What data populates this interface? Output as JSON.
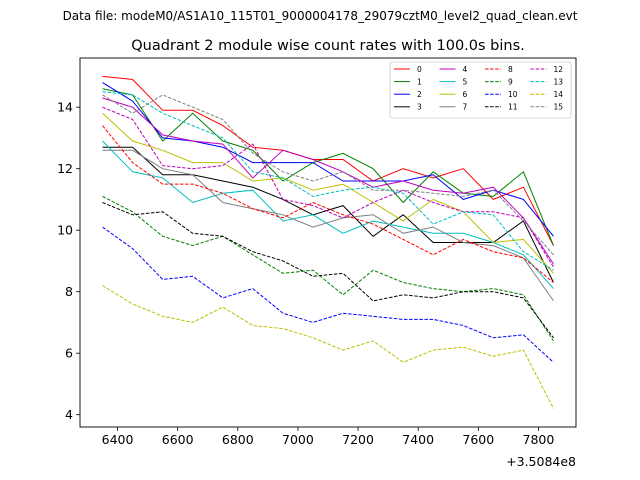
{
  "suptitle": "Data file: modeM0/AS1A10_115T01_9000004178_29079cztM0_level2_quad_clean.evt",
  "chart_data": {
    "type": "line",
    "title": "Quadrant 2 module wise count rates with 100.0s bins.",
    "xlabel": "",
    "ylabel": "",
    "x_offset_label": "+3.5084e8",
    "xlim": [
      6275,
      7925
    ],
    "ylim": [
      3.6,
      15.6
    ],
    "xticks": [
      6400,
      6600,
      6800,
      7000,
      7200,
      7400,
      7600,
      7800
    ],
    "yticks": [
      4,
      6,
      8,
      10,
      12,
      14
    ],
    "legend_position": "top-right",
    "x": [
      6350,
      6450,
      6550,
      6650,
      6750,
      6850,
      6950,
      7050,
      7150,
      7250,
      7350,
      7450,
      7550,
      7650,
      7750,
      7850
    ],
    "series": [
      {
        "name": "0",
        "color": "#ff0000",
        "dash": "solid",
        "values": [
          15.0,
          14.9,
          13.9,
          13.9,
          13.4,
          12.7,
          12.6,
          12.3,
          12.3,
          11.6,
          12.0,
          11.7,
          12.0,
          11.0,
          11.4,
          9.5
        ]
      },
      {
        "name": "1",
        "color": "#008000",
        "dash": "solid",
        "values": [
          14.6,
          14.4,
          12.9,
          13.8,
          12.9,
          12.6,
          11.6,
          12.2,
          12.5,
          12.0,
          10.9,
          11.9,
          11.2,
          11.1,
          11.9,
          9.5
        ]
      },
      {
        "name": "2",
        "color": "#0000ff",
        "dash": "solid",
        "values": [
          14.8,
          14.2,
          13.0,
          12.9,
          12.7,
          12.2,
          12.2,
          12.2,
          11.6,
          11.6,
          11.6,
          11.8,
          11.0,
          11.3,
          11.0,
          9.8
        ]
      },
      {
        "name": "3",
        "color": "#000000",
        "dash": "solid",
        "values": [
          12.7,
          12.7,
          11.8,
          11.8,
          11.6,
          11.4,
          11.0,
          10.5,
          10.8,
          9.8,
          10.5,
          9.6,
          9.6,
          9.6,
          10.3,
          8.3
        ]
      },
      {
        "name": "4",
        "color": "#bf00bf",
        "dash": "solid",
        "values": [
          14.3,
          14.0,
          13.1,
          12.9,
          12.8,
          11.7,
          12.6,
          12.3,
          11.9,
          11.4,
          11.6,
          11.3,
          11.2,
          11.4,
          10.4,
          8.9
        ]
      },
      {
        "name": "5",
        "color": "#00bfbf",
        "dash": "solid",
        "values": [
          12.9,
          11.9,
          11.7,
          10.9,
          11.2,
          11.3,
          10.3,
          10.5,
          9.9,
          10.3,
          10.1,
          9.9,
          9.9,
          9.6,
          9.2,
          8.1
        ]
      },
      {
        "name": "6",
        "color": "#bfbf00",
        "dash": "solid",
        "values": [
          13.8,
          12.9,
          12.6,
          12.2,
          12.2,
          11.6,
          11.7,
          11.3,
          11.5,
          10.9,
          10.3,
          11.0,
          10.6,
          9.6,
          9.7,
          8.6
        ]
      },
      {
        "name": "7",
        "color": "#808080",
        "dash": "solid",
        "values": [
          12.6,
          12.6,
          12.0,
          11.8,
          10.9,
          10.7,
          10.5,
          10.1,
          10.4,
          10.5,
          9.9,
          10.1,
          9.6,
          9.5,
          9.1,
          7.7
        ]
      },
      {
        "name": "8",
        "color": "#ff0000",
        "dash": "dashed",
        "values": [
          13.4,
          12.2,
          11.5,
          11.5,
          11.2,
          10.7,
          10.4,
          10.9,
          10.5,
          10.2,
          9.7,
          9.2,
          9.7,
          9.3,
          9.1,
          8.3
        ]
      },
      {
        "name": "9",
        "color": "#008000",
        "dash": "dashed",
        "values": [
          11.1,
          10.6,
          9.8,
          9.5,
          9.8,
          9.2,
          8.6,
          8.7,
          7.9,
          8.7,
          8.3,
          8.1,
          8.0,
          8.1,
          7.9,
          6.4
        ]
      },
      {
        "name": "10",
        "color": "#0000ff",
        "dash": "dashed",
        "values": [
          10.1,
          9.4,
          8.4,
          8.5,
          7.8,
          8.1,
          7.3,
          7.0,
          7.3,
          7.2,
          7.1,
          7.1,
          6.9,
          6.5,
          6.6,
          5.7
        ]
      },
      {
        "name": "11",
        "color": "#000000",
        "dash": "dashed",
        "values": [
          10.9,
          10.5,
          10.6,
          9.9,
          9.8,
          9.3,
          9.0,
          8.5,
          8.6,
          7.7,
          7.9,
          7.8,
          8.0,
          8.0,
          7.8,
          6.5
        ]
      },
      {
        "name": "12",
        "color": "#bf00bf",
        "dash": "dashed",
        "values": [
          14.0,
          13.6,
          12.1,
          12.0,
          12.1,
          12.8,
          11.0,
          10.8,
          10.4,
          10.9,
          11.3,
          10.9,
          10.6,
          10.6,
          10.4,
          8.8
        ]
      },
      {
        "name": "13",
        "color": "#00bfbf",
        "dash": "dashed",
        "values": [
          14.5,
          14.4,
          13.8,
          13.4,
          13.0,
          11.9,
          11.7,
          11.1,
          11.3,
          11.4,
          11.2,
          10.2,
          10.6,
          10.5,
          9.3,
          8.7
        ]
      },
      {
        "name": "14",
        "color": "#bfbf00",
        "dash": "dashed",
        "values": [
          8.2,
          7.6,
          7.2,
          7.0,
          7.5,
          6.9,
          6.8,
          6.5,
          6.1,
          6.4,
          5.7,
          6.1,
          6.2,
          5.9,
          6.1,
          4.2
        ]
      },
      {
        "name": "15",
        "color": "#808080",
        "dash": "dashed",
        "values": [
          14.4,
          13.8,
          14.4,
          14.0,
          13.6,
          12.5,
          11.9,
          11.6,
          11.9,
          11.3,
          11.3,
          11.2,
          11.1,
          11.3,
          10.3,
          9.2
        ]
      }
    ]
  }
}
